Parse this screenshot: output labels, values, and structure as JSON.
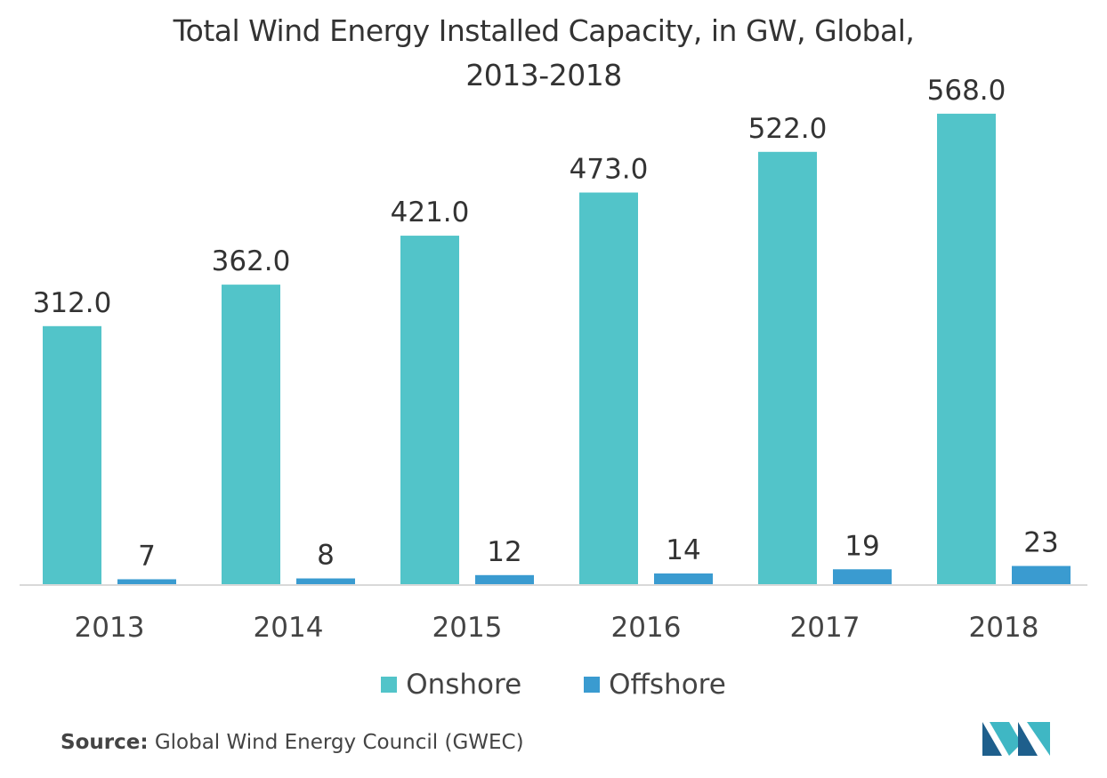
{
  "chart_data": {
    "type": "bar",
    "title": "Total Wind Energy Installed Capacity, in GW, Global,",
    "subtitle": "2013-2018",
    "categories": [
      "2013",
      "2014",
      "2015",
      "2016",
      "2017",
      "2018"
    ],
    "series": [
      {
        "name": "Onshore",
        "color": "#52c4c9",
        "values": [
          312.0,
          362.0,
          421.0,
          473.0,
          522.0,
          568.0
        ],
        "labels": [
          "312.0",
          "362.0",
          "421.0",
          "473.0",
          "522.0",
          "568.0"
        ]
      },
      {
        "name": "Offshore",
        "color": "#3a9bd0",
        "values": [
          7,
          8,
          12,
          14,
          19,
          23
        ],
        "labels": [
          "7",
          "8",
          "12",
          "14",
          "19",
          "23"
        ]
      }
    ],
    "ylim": [
      0,
      600
    ],
    "grid": false,
    "legend_position": "bottom"
  },
  "source": {
    "label": "Source:",
    "text": " Global Wind Energy Council (GWEC)"
  },
  "logo": {
    "icon": "mordor-intelligence-logo-icon",
    "colors": [
      "#1e5f8c",
      "#3fb7c4"
    ]
  }
}
